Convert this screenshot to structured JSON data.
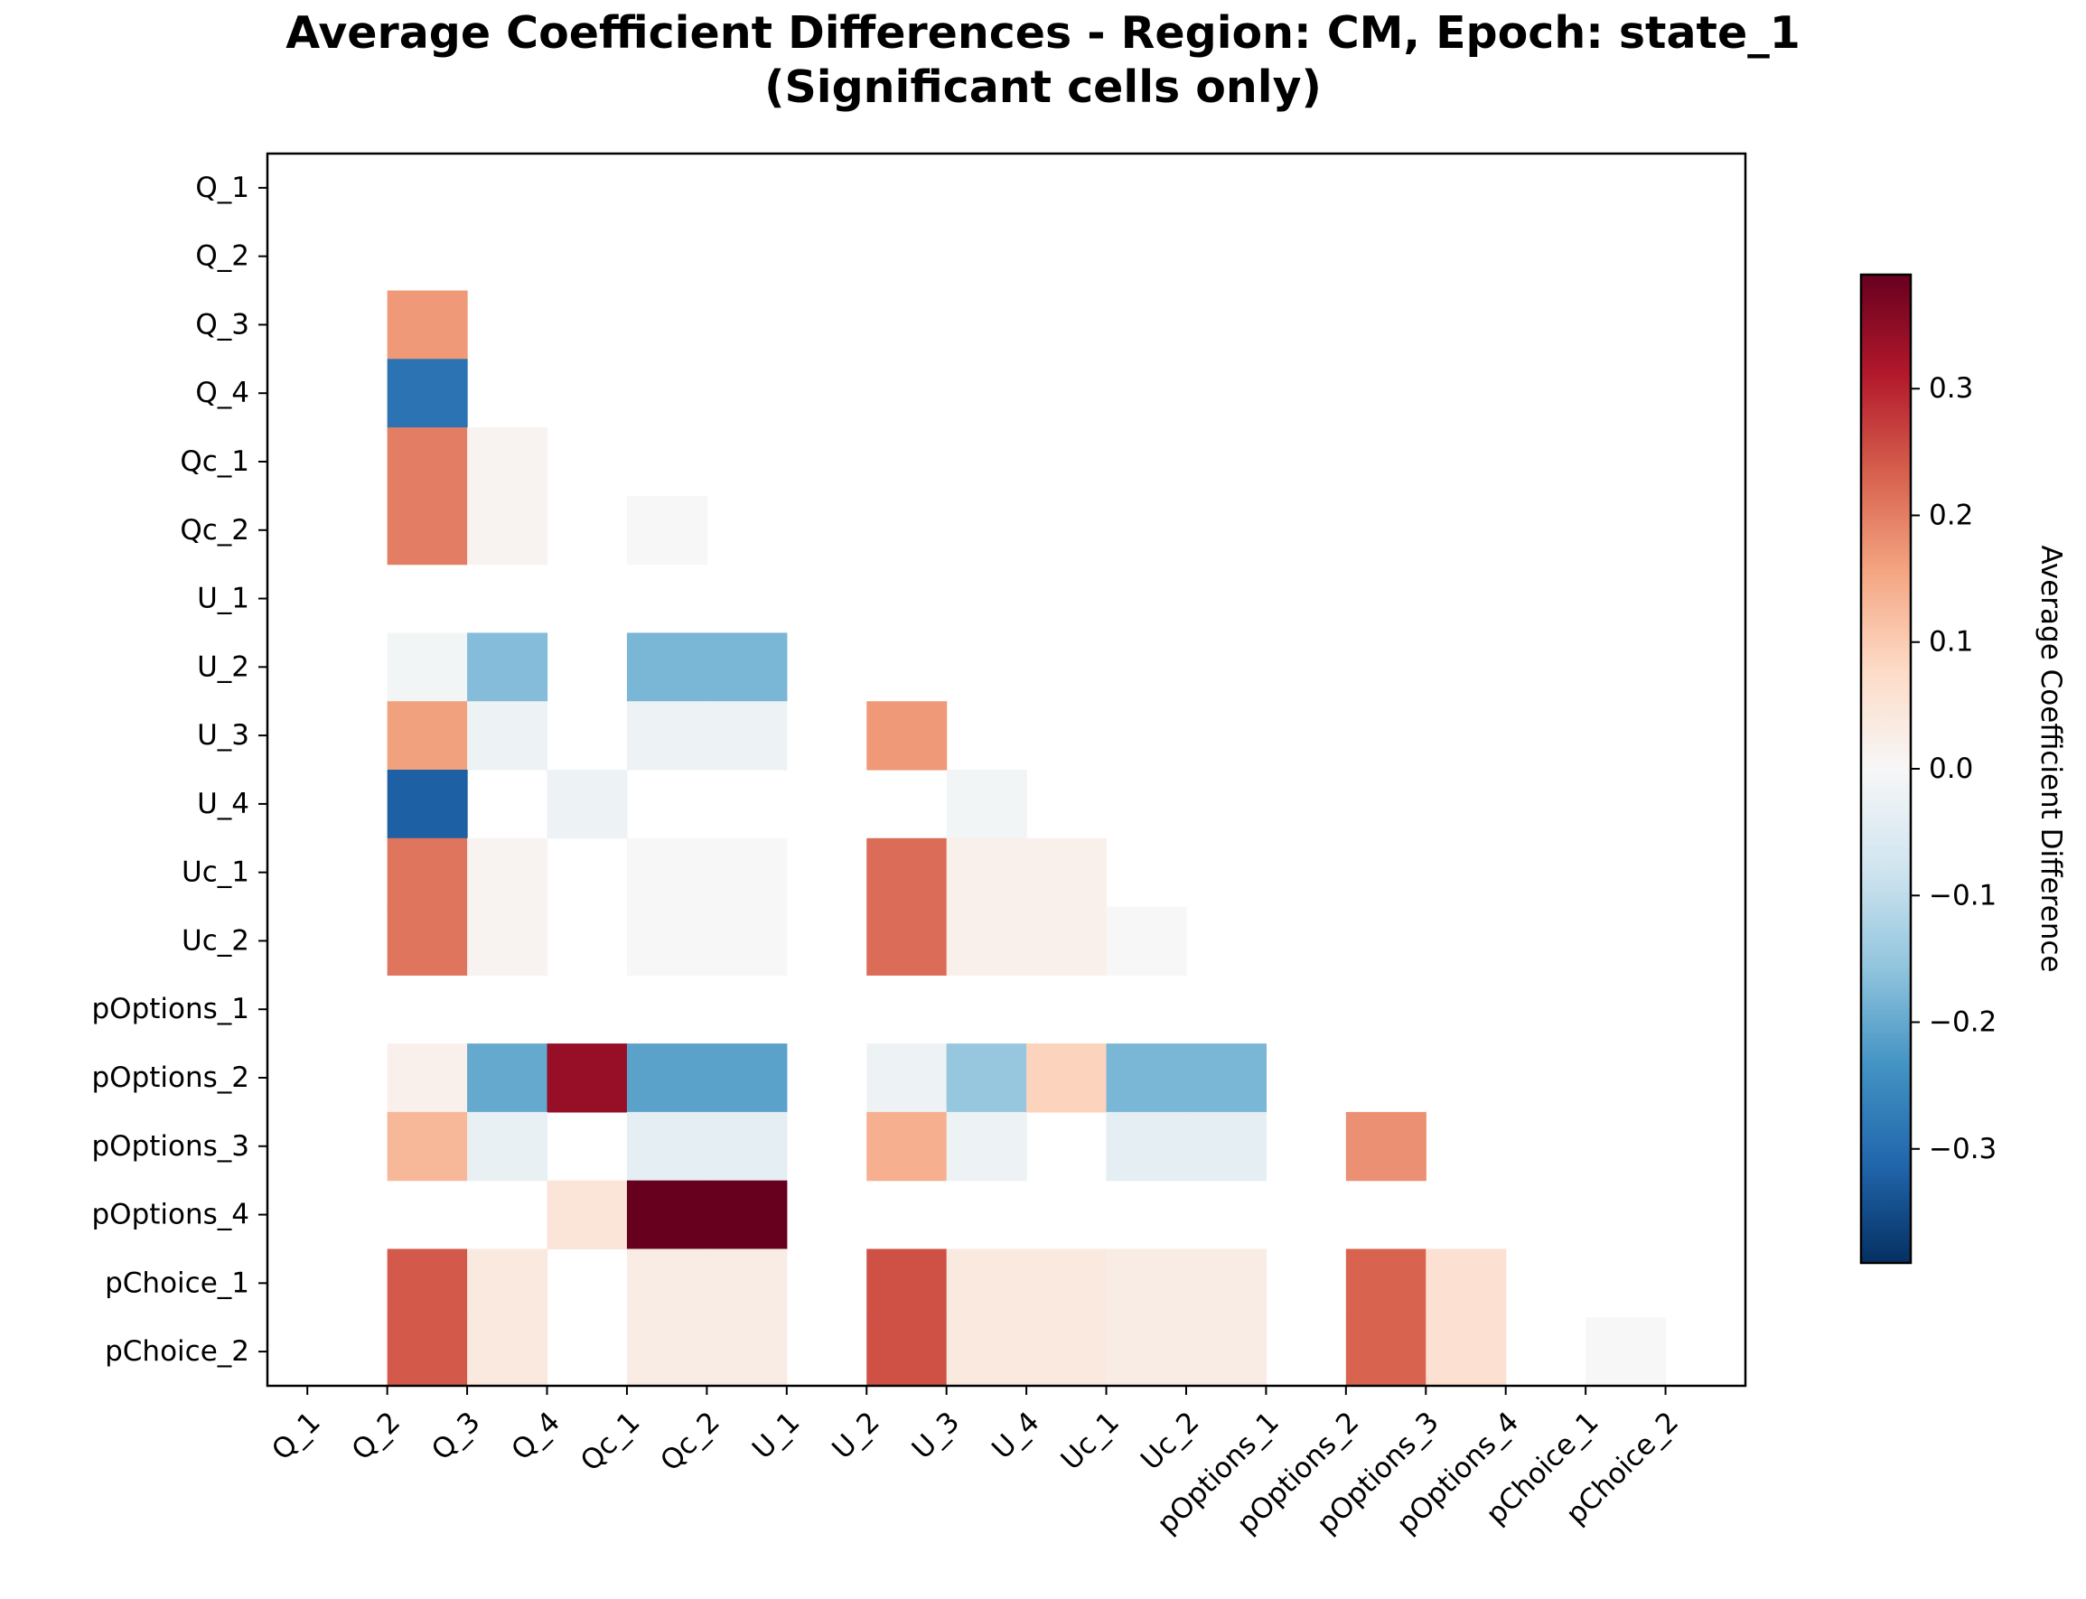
{
  "chart_data": {
    "type": "heatmap",
    "title": "Average Coefficient Differences - Region: CM, Epoch: state_1",
    "subtitle": "(Significant cells only)",
    "xlabel": "",
    "ylabel": "",
    "rows": [
      "Q_1",
      "Q_2",
      "Q_3",
      "Q_4",
      "Qc_1",
      "Qc_2",
      "U_1",
      "U_2",
      "U_3",
      "U_4",
      "Uc_1",
      "Uc_2",
      "pOptions_1",
      "pOptions_2",
      "pOptions_3",
      "pOptions_4",
      "pChoice_1",
      "pChoice_2"
    ],
    "columns": [
      "Q_1",
      "Q_2",
      "Q_3",
      "Q_4",
      "Qc_1",
      "Qc_2",
      "U_1",
      "U_2",
      "U_3",
      "U_4",
      "Uc_1",
      "Uc_2",
      "pOptions_1",
      "pOptions_2",
      "pOptions_3",
      "pOptions_4",
      "pChoice_1",
      "pChoice_2"
    ],
    "values": [
      [
        null,
        null,
        null,
        null,
        null,
        null,
        null,
        null,
        null,
        null,
        null,
        null,
        null,
        null,
        null,
        null,
        null,
        null
      ],
      [
        null,
        null,
        null,
        null,
        null,
        null,
        null,
        null,
        null,
        null,
        null,
        null,
        null,
        null,
        null,
        null,
        null,
        null
      ],
      [
        null,
        0.17,
        null,
        null,
        null,
        null,
        null,
        null,
        null,
        null,
        null,
        null,
        null,
        null,
        null,
        null,
        null,
        null
      ],
      [
        null,
        -0.29,
        null,
        null,
        null,
        null,
        null,
        null,
        null,
        null,
        null,
        null,
        null,
        null,
        null,
        null,
        null,
        null
      ],
      [
        null,
        0.2,
        0.01,
        null,
        null,
        null,
        null,
        null,
        null,
        null,
        null,
        null,
        null,
        null,
        null,
        null,
        null,
        null
      ],
      [
        null,
        0.2,
        0.01,
        null,
        0.0,
        null,
        null,
        null,
        null,
        null,
        null,
        null,
        null,
        null,
        null,
        null,
        null,
        null
      ],
      [
        null,
        null,
        null,
        null,
        null,
        null,
        null,
        null,
        null,
        null,
        null,
        null,
        null,
        null,
        null,
        null,
        null,
        null
      ],
      [
        null,
        -0.01,
        -0.17,
        null,
        -0.18,
        -0.18,
        null,
        null,
        null,
        null,
        null,
        null,
        null,
        null,
        null,
        null,
        null,
        null
      ],
      [
        null,
        0.16,
        -0.02,
        null,
        -0.02,
        -0.02,
        null,
        0.17,
        null,
        null,
        null,
        null,
        null,
        null,
        null,
        null,
        null,
        null
      ],
      [
        null,
        -0.32,
        null,
        -0.02,
        null,
        null,
        null,
        null,
        -0.01,
        null,
        null,
        null,
        null,
        null,
        null,
        null,
        null,
        null
      ],
      [
        null,
        0.21,
        0.01,
        null,
        0.0,
        0.0,
        null,
        0.22,
        0.02,
        0.02,
        null,
        null,
        null,
        null,
        null,
        null,
        null,
        null
      ],
      [
        null,
        0.21,
        0.01,
        null,
        0.0,
        0.0,
        null,
        0.22,
        0.02,
        0.02,
        0.0,
        null,
        null,
        null,
        null,
        null,
        null,
        null
      ],
      [
        null,
        null,
        null,
        null,
        null,
        null,
        null,
        null,
        null,
        null,
        null,
        null,
        null,
        null,
        null,
        null,
        null,
        null
      ],
      [
        null,
        0.02,
        -0.2,
        0.34,
        -0.21,
        -0.21,
        null,
        -0.02,
        -0.15,
        0.09,
        -0.18,
        -0.18,
        null,
        null,
        null,
        null,
        null,
        null
      ],
      [
        null,
        0.13,
        -0.03,
        null,
        -0.04,
        -0.04,
        null,
        0.14,
        -0.02,
        null,
        -0.04,
        -0.04,
        null,
        0.18,
        null,
        null,
        null,
        null
      ],
      [
        null,
        null,
        null,
        0.05,
        0.39,
        0.39,
        null,
        null,
        null,
        null,
        null,
        null,
        null,
        null,
        null,
        null,
        null,
        null
      ],
      [
        null,
        0.24,
        0.04,
        null,
        0.03,
        0.03,
        null,
        0.25,
        0.04,
        0.04,
        0.03,
        0.03,
        null,
        0.23,
        0.06,
        null,
        null,
        null
      ],
      [
        null,
        0.24,
        0.04,
        null,
        0.03,
        0.03,
        null,
        0.25,
        0.04,
        0.04,
        0.03,
        0.03,
        null,
        0.23,
        0.06,
        null,
        0.0,
        null
      ]
    ],
    "colorscale": "RdBu_r",
    "vmin": -0.39,
    "vmax": 0.39,
    "colorbar": {
      "label": "Average Coefficient Difference",
      "ticks": [
        -0.3,
        -0.2,
        -0.1,
        0.0,
        0.1,
        0.2,
        0.3
      ],
      "tick_labels": [
        "−0.3",
        "−0.2",
        "−0.1",
        "0.0",
        "0.1",
        "0.2",
        "0.3"
      ]
    },
    "grid": false,
    "x_tick_rotation": "45"
  }
}
